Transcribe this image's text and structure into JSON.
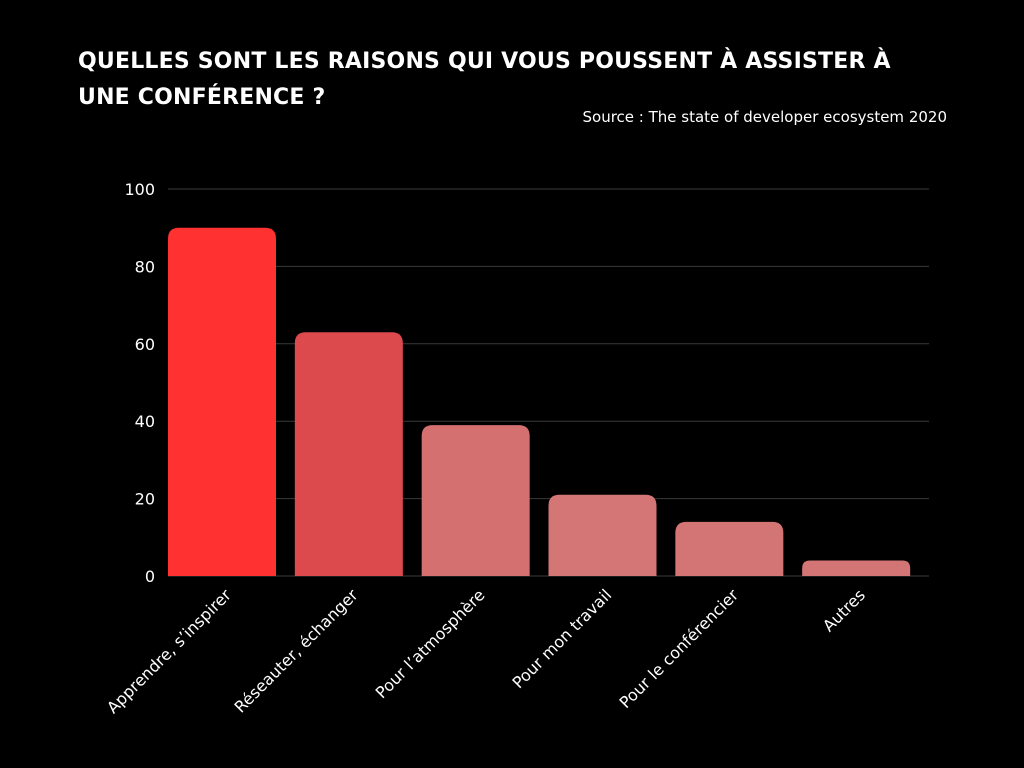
{
  "header": {
    "title": "QUELLES SONT LES RAISONS QUI VOUS POUSSENT À ASSISTER À UNE CONFÉRENCE ?",
    "source": "Source : The state of developer ecosystem 2020"
  },
  "chart_data": {
    "type": "bar",
    "categories": [
      "Apprendre, s’inspirer",
      "Réseauter, échanger",
      "Pour l’atmosphère",
      "Pour mon travail",
      "Pour le conférencier",
      "Autres"
    ],
    "values": [
      90,
      63,
      39,
      21,
      14,
      4
    ],
    "ylim": [
      0,
      100
    ],
    "yticks": [
      0,
      20,
      40,
      60,
      80,
      100
    ],
    "grid": true,
    "legend": "none",
    "colors": [
      "#ff3131",
      "#dc4a4d",
      "#d47070",
      "#d47676",
      "#d47575",
      "#d47575"
    ],
    "gridline_color": "#3a3a3a",
    "background_color": "#000000"
  }
}
